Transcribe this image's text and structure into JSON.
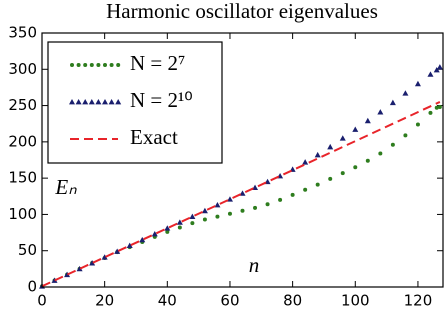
{
  "chart_data": {
    "type": "line",
    "title": "Harmonic oscillator eigenvalues",
    "x_label": "n",
    "y_label": "Eₙ",
    "x": [
      0,
      4,
      8,
      12,
      16,
      20,
      24,
      28,
      32,
      36,
      40,
      44,
      48,
      52,
      56,
      60,
      64,
      68,
      72,
      76,
      80,
      84,
      88,
      92,
      96,
      100,
      104,
      108,
      112,
      116,
      120,
      124,
      126,
      127
    ],
    "series": [
      {
        "name": "N = 2⁷",
        "color": "#2e7d1e",
        "marker": "o",
        "values": [
          1,
          9,
          17,
          25,
          33,
          40,
          48,
          55,
          62,
          69,
          76,
          82,
          88,
          93,
          97,
          101,
          105,
          109,
          114,
          120,
          127,
          134,
          141,
          149,
          157,
          165,
          174,
          184,
          196,
          209,
          224,
          240,
          247,
          248
        ]
      },
      {
        "name": "N = 2¹⁰",
        "color": "#1a1f6e",
        "marker": "^",
        "values": [
          1,
          9,
          17,
          25,
          33,
          41,
          49,
          57,
          65,
          73,
          81,
          89,
          97,
          105,
          113,
          121,
          129,
          137,
          145,
          153,
          162,
          172,
          182,
          193,
          205,
          217,
          229,
          241,
          254,
          267,
          280,
          293,
          299,
          303
        ]
      },
      {
        "name": "Exact",
        "color": "#e8242a",
        "linestyle": "--",
        "values": [
          1,
          9,
          17,
          25,
          33,
          41,
          49,
          57,
          65,
          73,
          81,
          89,
          97,
          105,
          113,
          121,
          129,
          137,
          145,
          153,
          161,
          169,
          177,
          185,
          193,
          201,
          209,
          217,
          225,
          233,
          241,
          249,
          253,
          255
        ]
      }
    ],
    "xlim": [
      0,
      128
    ],
    "ylim": [
      0,
      350
    ],
    "xticks": [
      0,
      20,
      40,
      60,
      80,
      100,
      120
    ],
    "yticks": [
      0,
      50,
      100,
      150,
      200,
      250,
      300,
      350
    ],
    "grid": false,
    "legend": "upper left"
  }
}
